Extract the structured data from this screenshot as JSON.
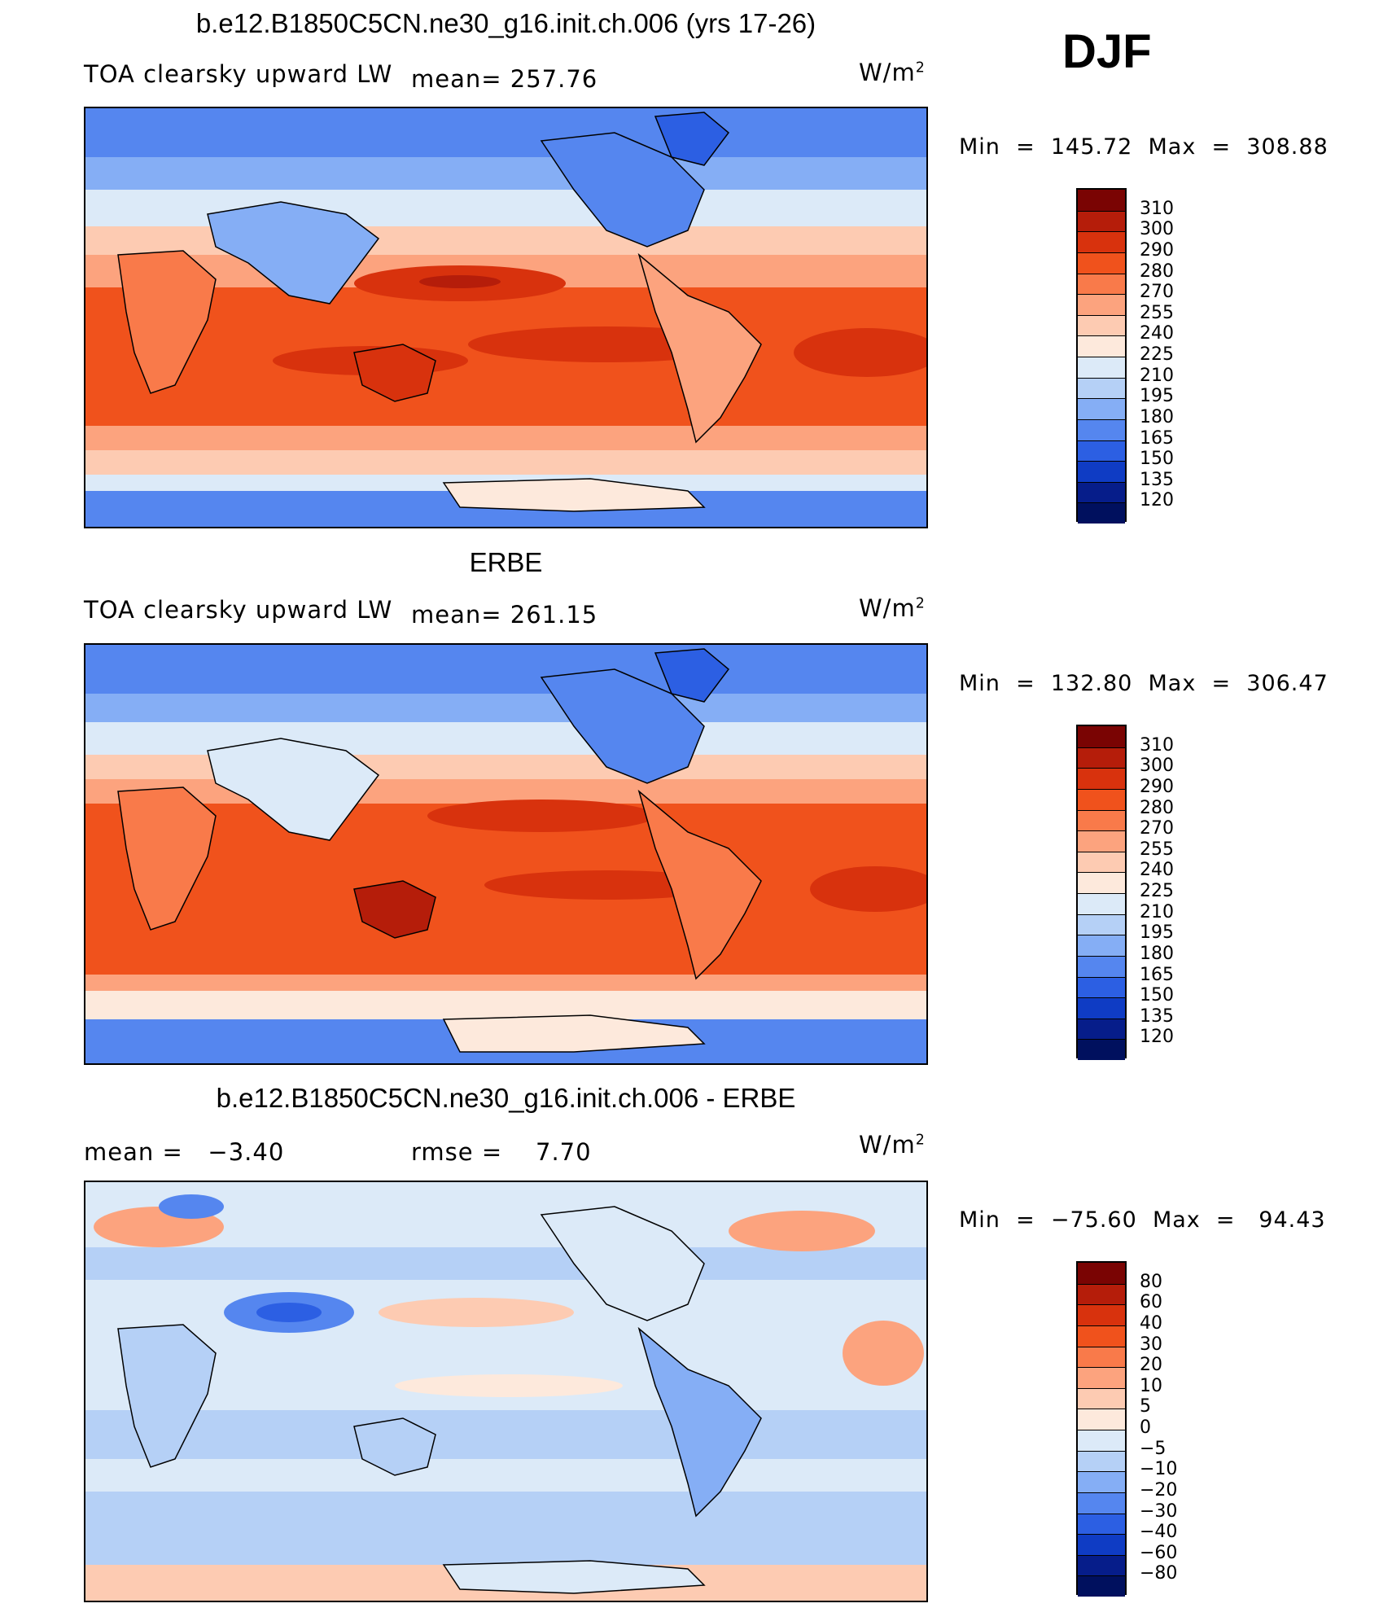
{
  "season": "DJF",
  "units_base": "W/m",
  "units_exp": "2",
  "panels": [
    {
      "title": "b.e12.B1850C5CN.ne30_g16.init.ch.006 (yrs 17-26)",
      "left_label": "TOA clearsky upward LW",
      "stat_label": "mean= 257.76",
      "minmax": "Min  =  145.72  Max  =  308.88",
      "colorbar_labels": [
        "310",
        "300",
        "290",
        "280",
        "270",
        "255",
        "240",
        "225",
        "210",
        "195",
        "180",
        "165",
        "150",
        "135",
        "120"
      ]
    },
    {
      "title": "ERBE",
      "left_label": "TOA clearsky upward LW",
      "stat_label": "mean= 261.15",
      "minmax": "Min  =  132.80  Max  =  306.47",
      "colorbar_labels": [
        "310",
        "300",
        "290",
        "280",
        "270",
        "255",
        "240",
        "225",
        "210",
        "195",
        "180",
        "165",
        "150",
        "135",
        "120"
      ]
    },
    {
      "title": "b.e12.B1850C5CN.ne30_g16.init.ch.006 - ERBE",
      "left_label": "mean =   −3.40",
      "stat_label": "rmse =    7.70",
      "minmax": "Min  =  −75.60  Max  =   94.43",
      "colorbar_labels": [
        "80",
        "60",
        "40",
        "30",
        "20",
        "10",
        "5",
        "0",
        "−5",
        "−10",
        "−20",
        "−30",
        "−40",
        "−60",
        "−80"
      ]
    }
  ],
  "colors": {
    "abs_scale": [
      "#7a0403",
      "#b51d0a",
      "#d8320d",
      "#f0521c",
      "#f97a4a",
      "#fca37e",
      "#fdcbb2",
      "#fde9dc",
      "#dceaf8",
      "#b5d0f6",
      "#85aef5",
      "#5586ef",
      "#2c5fe3",
      "#0f3cc4",
      "#061d8a",
      "#00105e"
    ],
    "diff_scale": [
      "#7a0403",
      "#b51d0a",
      "#d8320d",
      "#f0521c",
      "#f97a4a",
      "#fca37e",
      "#fdcbb2",
      "#fde9dc",
      "#dceaf8",
      "#b5d0f6",
      "#85aef5",
      "#5586ef",
      "#2c5fe3",
      "#0f3cc4",
      "#061d8a",
      "#00105e"
    ]
  }
}
